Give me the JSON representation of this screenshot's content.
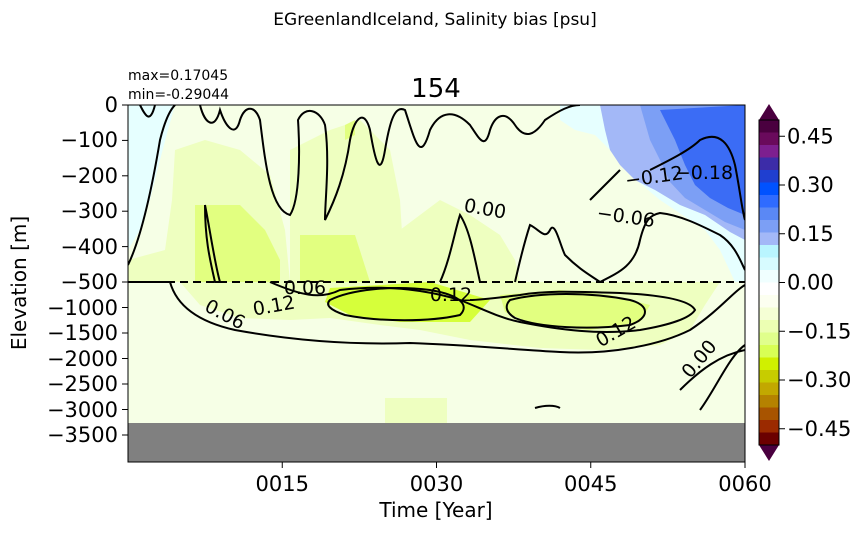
{
  "figure": {
    "suptitle": "EGreenlandIceland, Salinity bias [psu]",
    "title": "154",
    "max_label": "max=0.17045",
    "min_label": "min=-0.29044"
  },
  "chart_data": {
    "type": "heatmap",
    "xlabel": "Time [Year]",
    "ylabel": "Elevation [m]",
    "x_ticks": [
      {
        "value": 15,
        "label": "0015"
      },
      {
        "value": 30,
        "label": "0030"
      },
      {
        "value": 45,
        "label": "0045"
      },
      {
        "value": 60,
        "label": "0060"
      }
    ],
    "xlim": [
      0,
      60
    ],
    "y_ticks_upper": [
      "0",
      "−100",
      "−200",
      "−300",
      "−400",
      "−500"
    ],
    "y_ticks_lower": [
      "−1000",
      "−1500",
      "−2000",
      "−2500",
      "−3000",
      "−3500"
    ],
    "y_scale": "split: linear 0 to -500 m on top, linear -500 to -4000 m below",
    "split_depth": -500,
    "land_mask_below": -3250,
    "colorbar": {
      "ticks": [
        "0.45",
        "0.30",
        "0.15",
        "0.00",
        "−0.15",
        "−0.30",
        "−0.45"
      ],
      "range": [
        -0.5,
        0.5
      ],
      "extend": "both",
      "colors": [
        "#4a003f",
        "#6a0a5c",
        "#7d1f8f",
        "#3c2ca8",
        "#1f3fd0",
        "#0052ff",
        "#2f6bff",
        "#5a88f5",
        "#7c9ff5",
        "#a3b8f7",
        "#b9f5ff",
        "#d7fbff",
        "#f0ffff",
        "#ffffff",
        "#fcfff0",
        "#f5ffd5",
        "#ecffb3",
        "#e0ff8c",
        "#d8ff55",
        "#d0f000",
        "#c7cc00",
        "#c2a800",
        "#b58200",
        "#a85400",
        "#9b2a00",
        "#6b0000"
      ]
    },
    "contour_labels": [
      "0.00",
      "−0.12",
      "−0.18",
      "−0.06",
      "0.06",
      "0.12",
      "0.06",
      "0.12",
      "0.12",
      "0.00"
    ],
    "colors": {
      "land": "#808080",
      "background_field": "#f6ffe6",
      "positive_weak": "#eeffc0",
      "positive_mid": "#e2ff80",
      "positive_strong": "#d6ff3a",
      "negative_weak": "#e6ffff",
      "negative_mid": "#a3b8f7",
      "negative_strong": "#3b6cf5"
    }
  }
}
